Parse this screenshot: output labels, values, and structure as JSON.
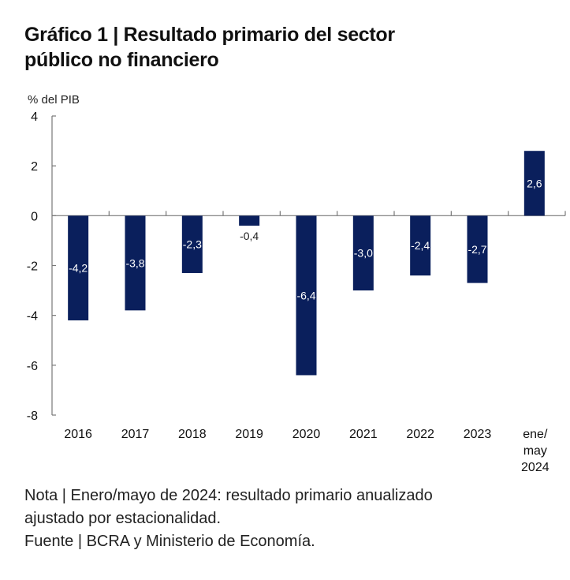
{
  "header": {
    "title_line1": "Gráfico 1 | Resultado primario del sector",
    "title_line2": "público no financiero"
  },
  "footer": {
    "note_line1": "Nota | Enero/mayo de 2024: resultado primario anualizado",
    "note_line2": "ajustado por estacionalidad.",
    "source": "Fuente | BCRA y Ministerio de Economía."
  },
  "colors": {
    "bar": "#0a1f5c",
    "axis": "#777777",
    "label_inside": "#ffffff",
    "label_outside": "#222222"
  },
  "chart_data": {
    "type": "bar",
    "title": "Gráfico 1 | Resultado primario del sector público no financiero",
    "xlabel": "",
    "ylabel": "% del PIB",
    "categories": [
      "2016",
      "2017",
      "2018",
      "2019",
      "2020",
      "2021",
      "2022",
      "2023",
      "ene/\nmay\n2024"
    ],
    "values": [
      -4.2,
      -3.8,
      -2.3,
      -0.4,
      -6.4,
      -3.0,
      -2.4,
      -2.7,
      2.6
    ],
    "data_labels": [
      "-4,2",
      "-3,8",
      "-2,3",
      "-0,4",
      "-6,4",
      "-3,0",
      "-2,4",
      "-2,7",
      "2,6"
    ],
    "ylim": [
      -8,
      4
    ],
    "yticks": [
      4,
      2,
      0,
      -2,
      -4,
      -6,
      -8
    ],
    "ytick_labels": [
      "4",
      "2",
      "0",
      "-2",
      "-4",
      "-6",
      "-8"
    ],
    "grid": false,
    "legend": "none"
  }
}
